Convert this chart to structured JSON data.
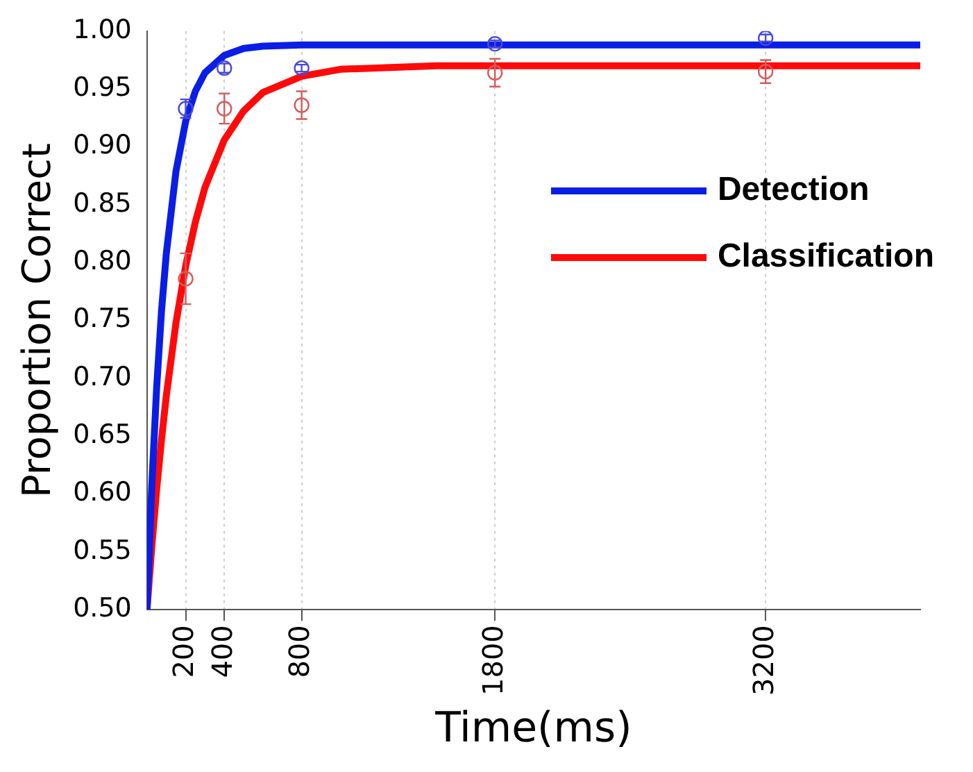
{
  "chart_data": {
    "type": "scatter",
    "xlabel": "Time(ms)",
    "ylabel": "Proportion Correct",
    "xlim": [
      0,
      4000
    ],
    "xticks": [
      200,
      400,
      800,
      1800,
      3200
    ],
    "ylim": [
      0.5,
      1.0
    ],
    "yticks": [
      {
        "value": 0.5,
        "label": "0.50"
      },
      {
        "value": 0.55,
        "label": "0.55"
      },
      {
        "value": 0.6,
        "label": "0.60"
      },
      {
        "value": 0.65,
        "label": "0.65"
      },
      {
        "value": 0.7,
        "label": "0.70"
      },
      {
        "value": 0.75,
        "label": "0.75"
      },
      {
        "value": 0.8,
        "label": "0.80"
      },
      {
        "value": 0.85,
        "label": "0.85"
      },
      {
        "value": 0.9,
        "label": "0.90"
      },
      {
        "value": 0.95,
        "label": "0.95"
      },
      {
        "value": 1.0,
        "label": "1.00"
      }
    ],
    "grid": "x",
    "legend": "right",
    "series": [
      {
        "type": "line",
        "name": "Detection",
        "color": "#0a1ee6",
        "marker": "none",
        "x": [
          0,
          25,
          50,
          75,
          100,
          150,
          200,
          250,
          300,
          400,
          500,
          600,
          800,
          4000
        ],
        "values": [
          0.5,
          0.608,
          0.692,
          0.758,
          0.808,
          0.879,
          0.922,
          0.948,
          0.964,
          0.979,
          0.985,
          0.987,
          0.988,
          0.988
        ]
      },
      {
        "type": "line",
        "name": "Classification",
        "color": "#ff0a0a",
        "marker": "none",
        "x": [
          0,
          25,
          50,
          75,
          100,
          150,
          200,
          250,
          300,
          400,
          500,
          600,
          800,
          1000,
          1500,
          4000
        ],
        "values": [
          0.5,
          0.555,
          0.604,
          0.647,
          0.685,
          0.748,
          0.797,
          0.835,
          0.865,
          0.906,
          0.931,
          0.947,
          0.961,
          0.967,
          0.97,
          0.97
        ]
      },
      {
        "color": "#4a4ad8",
        "marker": "circle",
        "x": [
          200,
          400,
          800,
          1800,
          3200
        ],
        "values": [
          0.933,
          0.968,
          0.968,
          0.989,
          0.994
        ],
        "errors": [
          0.008,
          0.004,
          0.003,
          0.003,
          0.003
        ]
      },
      {
        "color": "#d85a5a",
        "marker": "circle",
        "x": [
          200,
          400,
          800,
          1800,
          3200
        ],
        "values": [
          0.786,
          0.933,
          0.936,
          0.964,
          0.965
        ],
        "errors": [
          0.022,
          0.013,
          0.012,
          0.012,
          0.01
        ]
      }
    ]
  }
}
